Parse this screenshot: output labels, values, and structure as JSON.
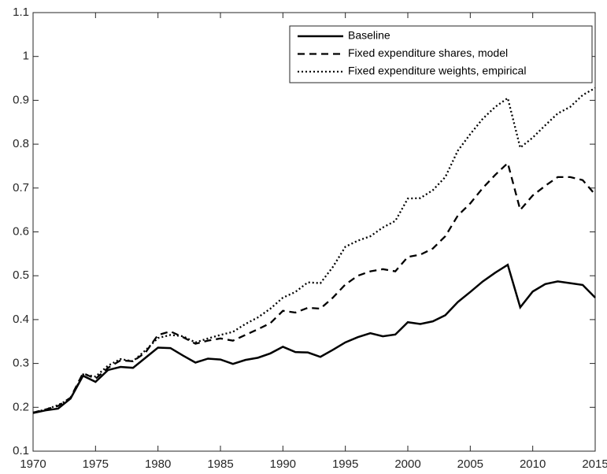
{
  "chart_data": {
    "type": "line",
    "x": [
      1970,
      1971,
      1972,
      1973,
      1974,
      1975,
      1976,
      1977,
      1978,
      1979,
      1980,
      1981,
      1982,
      1983,
      1984,
      1985,
      1986,
      1987,
      1988,
      1989,
      1990,
      1991,
      1992,
      1993,
      1994,
      1995,
      1996,
      1997,
      1998,
      1999,
      2000,
      2001,
      2002,
      2003,
      2004,
      2005,
      2006,
      2007,
      2008,
      2009,
      2010,
      2011,
      2012,
      2013,
      2014,
      2015
    ],
    "series": [
      {
        "name": "Baseline",
        "color": "#000000",
        "linestyle": "solid",
        "values": [
          0.187,
          0.193,
          0.197,
          0.22,
          0.272,
          0.258,
          0.285,
          0.292,
          0.29,
          0.313,
          0.336,
          0.335,
          0.318,
          0.302,
          0.311,
          0.309,
          0.299,
          0.308,
          0.313,
          0.323,
          0.338,
          0.326,
          0.325,
          0.315,
          0.331,
          0.348,
          0.36,
          0.369,
          0.362,
          0.366,
          0.394,
          0.39,
          0.396,
          0.41,
          0.44,
          0.463,
          0.487,
          0.507,
          0.525,
          0.428,
          0.464,
          0.481,
          0.487,
          0.483,
          0.479,
          0.45
        ]
      },
      {
        "name": "Fixed expenditure shares, model",
        "color": "#000000",
        "linestyle": "dashed",
        "values": [
          0.188,
          0.195,
          0.203,
          0.222,
          0.278,
          0.265,
          0.29,
          0.307,
          0.305,
          0.325,
          0.365,
          0.373,
          0.36,
          0.345,
          0.352,
          0.357,
          0.352,
          0.365,
          0.378,
          0.392,
          0.42,
          0.416,
          0.427,
          0.425,
          0.45,
          0.48,
          0.5,
          0.51,
          0.515,
          0.51,
          0.543,
          0.548,
          0.562,
          0.59,
          0.637,
          0.665,
          0.7,
          0.73,
          0.757,
          0.65,
          0.683,
          0.705,
          0.725,
          0.725,
          0.718,
          0.685
        ]
      },
      {
        "name": "Fixed expenditure weights, empirical",
        "color": "#000000",
        "linestyle": "dotted",
        "values": [
          0.188,
          0.195,
          0.205,
          0.22,
          0.275,
          0.27,
          0.295,
          0.31,
          0.305,
          0.33,
          0.358,
          0.365,
          0.362,
          0.348,
          0.357,
          0.365,
          0.372,
          0.39,
          0.405,
          0.425,
          0.45,
          0.463,
          0.485,
          0.483,
          0.52,
          0.566,
          0.58,
          0.59,
          0.61,
          0.625,
          0.676,
          0.677,
          0.695,
          0.725,
          0.785,
          0.823,
          0.858,
          0.885,
          0.905,
          0.792,
          0.815,
          0.843,
          0.87,
          0.885,
          0.912,
          0.928
        ]
      }
    ],
    "xlim": [
      1970,
      2015
    ],
    "xticks": [
      1970,
      1975,
      1980,
      1985,
      1990,
      1995,
      2000,
      2005,
      2010,
      2015
    ],
    "ylim": [
      0.1,
      1.1
    ],
    "yticks": [
      0.1,
      0.2,
      0.3,
      0.4,
      0.5,
      0.6,
      0.7,
      0.8,
      0.9,
      1,
      1.1
    ],
    "grid": false,
    "legend": "upper right"
  }
}
